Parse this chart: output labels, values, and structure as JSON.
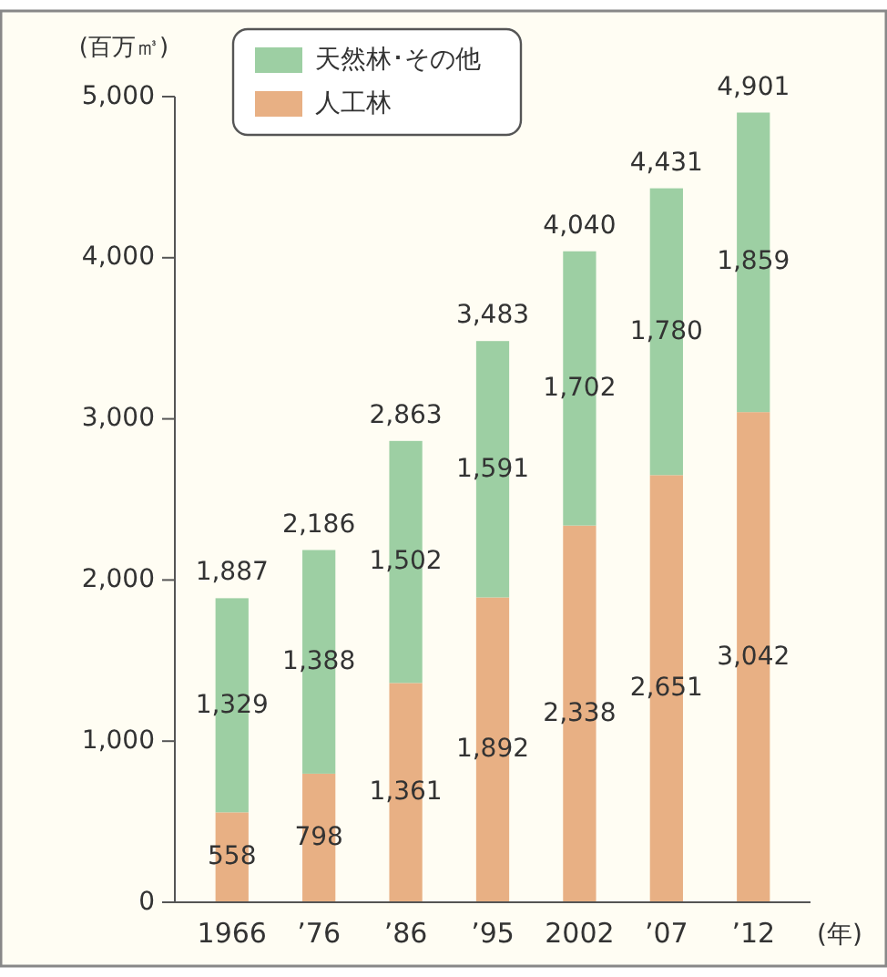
{
  "chart_data": {
    "type": "bar",
    "stacked": true,
    "ylabel": "(百万㎥)",
    "xlabel": "(年)",
    "categories": [
      "1966",
      "’76",
      "’86",
      "’95",
      "2002",
      "’07",
      "’12"
    ],
    "series": [
      {
        "name": "人工林",
        "color": "#e8b084",
        "values": [
          558,
          798,
          1361,
          1892,
          2338,
          2651,
          3042
        ],
        "value_labels": [
          "558",
          "798",
          "1,361",
          "1,892",
          "2,338",
          "2,651",
          "3,042"
        ]
      },
      {
        "name": "天然林･その他",
        "color": "#9dcfa3",
        "values": [
          1329,
          1388,
          1502,
          1591,
          1702,
          1780,
          1859
        ],
        "value_labels": [
          "1,329",
          "1,388",
          "1,502",
          "1,591",
          "1,702",
          "1,780",
          "1,859"
        ]
      }
    ],
    "ylim": [
      0,
      5000
    ],
    "yticks": [
      {
        "value": 0,
        "label": "0"
      },
      {
        "value": 1000,
        "label": "1,000"
      },
      {
        "value": 2000,
        "label": "2,000"
      },
      {
        "value": 3000,
        "label": "3,000"
      },
      {
        "value": 4000,
        "label": "4,000"
      },
      {
        "value": 5000,
        "label": "5,000"
      }
    ],
    "totals": [
      "1,887",
      "2,186",
      "2,863",
      "3,483",
      "4,040",
      "4,431",
      "4,901"
    ],
    "legend": "top left",
    "grid": false
  }
}
